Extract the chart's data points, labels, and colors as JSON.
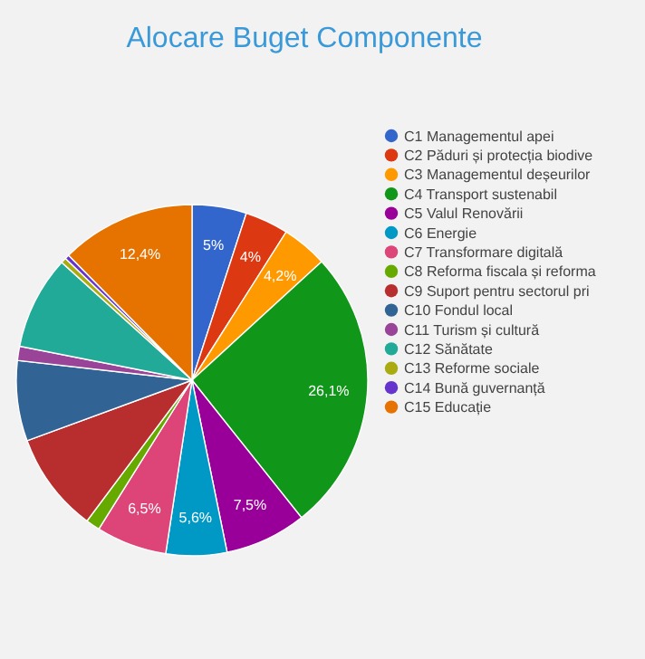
{
  "chart_data": {
    "type": "pie",
    "title": "Alocare Buget Componente",
    "categories": [
      "C1 Managementul apei",
      "C2 Păduri și protecția biodive",
      "C3 Managementul deșeurilor",
      "C4 Transport sustenabil",
      "C5 Valul Renovării",
      "C6 Energie",
      "C7 Transformare digitală",
      "C8 Reforma fiscala și reforma",
      "C9 Suport pentru sectorul pri",
      "C10 Fondul local",
      "C11 Turism și cultură",
      "C12 Sănătate",
      "C13 Reforme sociale",
      "C14 Bună guvernanță",
      "C15 Educație"
    ],
    "values": [
      5,
      4,
      4.2,
      26.1,
      7.5,
      5.6,
      6.5,
      1.3,
      9.2,
      7.4,
      1.3,
      8.6,
      0.5,
      0.4,
      12.4
    ],
    "colors": [
      "#3366cc",
      "#dc3912",
      "#ff9900",
      "#109618",
      "#990099",
      "#0099c6",
      "#dd4477",
      "#66aa00",
      "#b82e2e",
      "#316395",
      "#994499",
      "#22aa99",
      "#aaaa11",
      "#6633cc",
      "#e67300"
    ],
    "value_labels": [
      "5%",
      "4%",
      "4,2%",
      "26,1%",
      "7,5%",
      "5,6%",
      "6,5%",
      null,
      null,
      null,
      null,
      null,
      null,
      null,
      "12,4%"
    ],
    "legend": "right"
  }
}
